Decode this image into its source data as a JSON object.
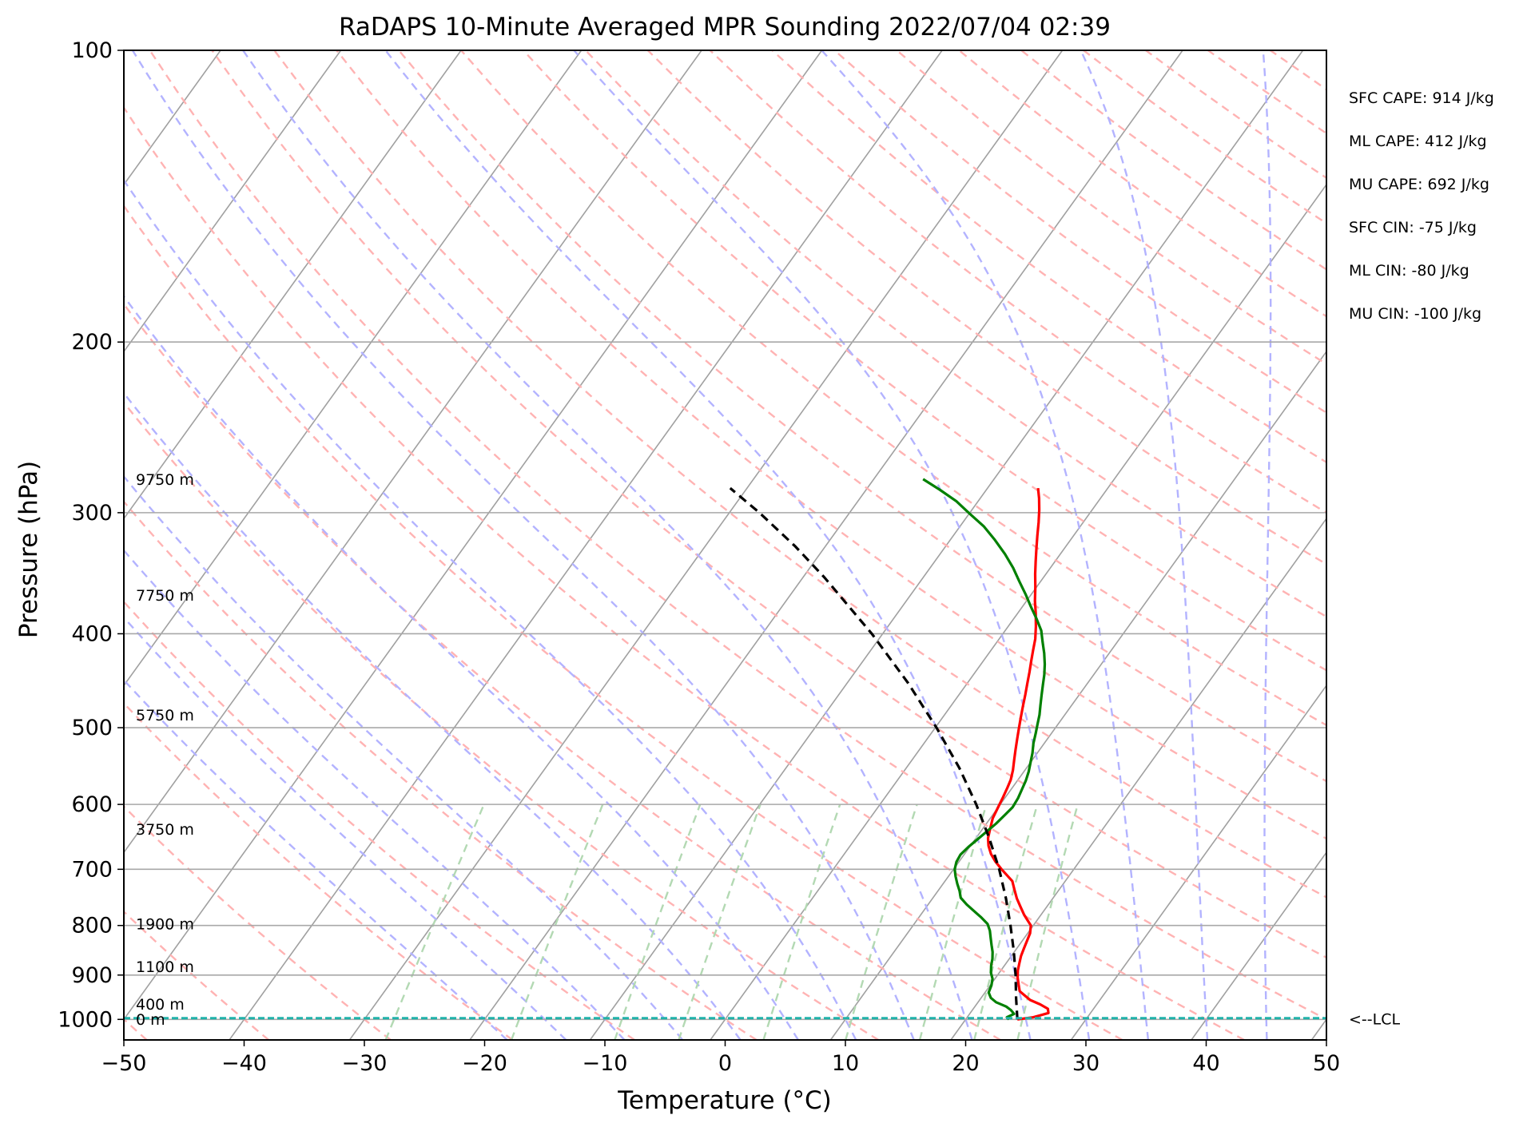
{
  "chart_data": {
    "type": "skew-t",
    "title": "RaDAPS 10-Minute Averaged MPR Sounding 2022/07/04 02:39",
    "xlabel": "Temperature (°C)",
    "ylabel": "Pressure (hPa)",
    "xlim": [
      -50,
      50
    ],
    "ylim_hPa": [
      1050,
      100
    ],
    "log_pressure_axis": true,
    "x_ticks": [
      {
        "value": -50,
        "label": "−50"
      },
      {
        "value": -40,
        "label": "−40"
      },
      {
        "value": -30,
        "label": "−30"
      },
      {
        "value": -20,
        "label": "−20"
      },
      {
        "value": -10,
        "label": "−10"
      },
      {
        "value": 0,
        "label": "0"
      },
      {
        "value": 10,
        "label": "10"
      },
      {
        "value": 20,
        "label": "20"
      },
      {
        "value": 30,
        "label": "30"
      },
      {
        "value": 40,
        "label": "40"
      },
      {
        "value": 50,
        "label": "50"
      }
    ],
    "y_ticks": [
      {
        "value": 100,
        "label": "100"
      },
      {
        "value": 200,
        "label": "200"
      },
      {
        "value": 300,
        "label": "300"
      },
      {
        "value": 400,
        "label": "400"
      },
      {
        "value": 500,
        "label": "500"
      },
      {
        "value": 600,
        "label": "600"
      },
      {
        "value": 700,
        "label": "700"
      },
      {
        "value": 800,
        "label": "800"
      },
      {
        "value": 900,
        "label": "900"
      },
      {
        "value": 1000,
        "label": "1000"
      }
    ],
    "grid": true,
    "background_lines": {
      "isotherms": {
        "color": "#a0a0a0",
        "style": "solid"
      },
      "dry_adiabats": {
        "color": "#ffb3b3",
        "style": "dashed"
      },
      "moist_adiabats": {
        "color": "#b3b3ff",
        "style": "dashed"
      },
      "mixing_ratio_lines": {
        "color": "#b3d9b3",
        "style": "dashed"
      }
    },
    "series": [
      {
        "color": "#ff0000",
        "points": [
          [
            24.3,
            1000
          ],
          [
            25.5,
            995
          ],
          [
            26.5,
            985
          ],
          [
            26.2,
            975
          ],
          [
            25.3,
            965
          ],
          [
            24.2,
            955
          ],
          [
            23.5,
            945
          ],
          [
            22.8,
            935
          ],
          [
            22.3,
            920
          ],
          [
            21.8,
            905
          ],
          [
            21.4,
            890
          ],
          [
            21.1,
            875
          ],
          [
            20.8,
            860
          ],
          [
            20.6,
            845
          ],
          [
            20.4,
            830
          ],
          [
            20.2,
            815
          ],
          [
            19.8,
            800
          ],
          [
            19.2,
            790
          ],
          [
            18.6,
            780
          ],
          [
            17.8,
            765
          ],
          [
            17.0,
            750
          ],
          [
            16.3,
            735
          ],
          [
            15.6,
            720
          ],
          [
            14.8,
            710
          ],
          [
            14.0,
            700
          ],
          [
            13.0,
            687
          ],
          [
            12.2,
            675
          ],
          [
            11.5,
            662
          ],
          [
            11.0,
            650
          ],
          [
            10.6,
            635
          ],
          [
            10.2,
            620
          ],
          [
            10.0,
            605
          ],
          [
            9.8,
            590
          ],
          [
            9.6,
            577
          ],
          [
            9.4,
            566
          ],
          [
            9.0,
            553
          ],
          [
            8.5,
            540
          ],
          [
            8.0,
            527
          ],
          [
            7.5,
            514
          ],
          [
            7.0,
            501
          ],
          [
            6.5,
            488
          ],
          [
            6.0,
            475
          ],
          [
            5.5,
            462
          ],
          [
            5.0,
            450
          ],
          [
            4.5,
            438
          ],
          [
            4.0,
            427
          ],
          [
            3.5,
            416
          ],
          [
            3.0,
            405
          ],
          [
            2.3,
            393
          ],
          [
            1.5,
            381
          ],
          [
            0.7,
            370
          ],
          [
            -0.1,
            358
          ],
          [
            -0.9,
            347
          ],
          [
            -1.6,
            337
          ],
          [
            -2.3,
            327
          ],
          [
            -3.0,
            317
          ],
          [
            -3.7,
            307
          ],
          [
            -4.4,
            298
          ],
          [
            -5.1,
            290
          ],
          [
            -5.8,
            283
          ]
        ]
      },
      {
        "color": "#008000",
        "points": [
          [
            23.6,
            1000
          ],
          [
            23.3,
            995
          ],
          [
            23.7,
            987
          ],
          [
            23.2,
            978
          ],
          [
            22.6,
            970
          ],
          [
            21.5,
            960
          ],
          [
            20.8,
            950
          ],
          [
            20.3,
            938
          ],
          [
            20.1,
            922
          ],
          [
            19.8,
            908
          ],
          [
            19.3,
            895
          ],
          [
            18.9,
            880
          ],
          [
            18.6,
            866
          ],
          [
            18.2,
            852
          ],
          [
            17.7,
            838
          ],
          [
            17.2,
            824
          ],
          [
            16.7,
            810
          ],
          [
            16.1,
            797
          ],
          [
            15.2,
            785
          ],
          [
            14.2,
            773
          ],
          [
            13.2,
            761
          ],
          [
            12.3,
            749
          ],
          [
            11.8,
            737
          ],
          [
            11.2,
            725
          ],
          [
            10.6,
            712
          ],
          [
            10.1,
            700
          ],
          [
            9.8,
            688
          ],
          [
            9.7,
            676
          ],
          [
            9.9,
            664
          ],
          [
            10.2,
            652
          ],
          [
            10.5,
            640
          ],
          [
            10.8,
            628
          ],
          [
            11.0,
            616
          ],
          [
            11.2,
            604
          ],
          [
            11.1,
            591
          ],
          [
            10.9,
            579
          ],
          [
            10.7,
            567
          ],
          [
            10.4,
            555
          ],
          [
            10.0,
            543
          ],
          [
            9.6,
            531
          ],
          [
            9.1,
            519
          ],
          [
            8.7,
            507
          ],
          [
            8.3,
            496
          ],
          [
            7.9,
            485
          ],
          [
            7.4,
            474
          ],
          [
            6.9,
            463
          ],
          [
            6.4,
            452
          ],
          [
            5.9,
            441
          ],
          [
            5.3,
            430
          ],
          [
            4.6,
            419
          ],
          [
            3.8,
            408
          ],
          [
            3.0,
            397
          ],
          [
            1.9,
            386
          ],
          [
            0.7,
            375
          ],
          [
            -0.5,
            364
          ],
          [
            -1.8,
            353
          ],
          [
            -3.1,
            342
          ],
          [
            -4.6,
            331
          ],
          [
            -6.3,
            320
          ],
          [
            -8.0,
            310
          ],
          [
            -9.9,
            301
          ],
          [
            -11.8,
            292
          ],
          [
            -13.9,
            284
          ],
          [
            -15.9,
            277
          ]
        ]
      },
      {
        "color": "#000000",
        "style": "dashed",
        "points": [
          [
            24.3,
            1000
          ],
          [
            22.9,
            950
          ],
          [
            21.5,
            900
          ],
          [
            19.9,
            850
          ],
          [
            18.1,
            800
          ],
          [
            16.1,
            750
          ],
          [
            13.8,
            700
          ],
          [
            11.1,
            650
          ],
          [
            8.0,
            600
          ],
          [
            4.4,
            550
          ],
          [
            0.1,
            500
          ],
          [
            -4.9,
            450
          ],
          [
            -10.9,
            400
          ],
          [
            -18.2,
            350
          ],
          [
            -22.5,
            325
          ],
          [
            -27.5,
            300
          ],
          [
            -31.4,
            283
          ]
        ]
      }
    ],
    "lcl": {
      "pressure_hPa": 997,
      "label": "<--LCL",
      "color": "#20b2aa"
    },
    "height_labels": [
      {
        "text": "9750 m",
        "pressure_hPa": 277
      },
      {
        "text": "7750 m",
        "pressure_hPa": 365
      },
      {
        "text": "5750 m",
        "pressure_hPa": 485
      },
      {
        "text": "3750 m",
        "pressure_hPa": 636
      },
      {
        "text": "1900 m",
        "pressure_hPa": 797
      },
      {
        "text": "1100 m",
        "pressure_hPa": 882
      },
      {
        "text": "400 m",
        "pressure_hPa": 964
      },
      {
        "text": "0 m",
        "pressure_hPa": 999
      }
    ],
    "indices": [
      "SFC CAPE: 914 J/kg",
      "ML CAPE: 412 J/kg",
      "MU CAPE: 692 J/kg",
      "SFC CIN: -75 J/kg",
      "ML CIN: -80 J/kg",
      "MU CIN: -100 J/kg"
    ]
  }
}
